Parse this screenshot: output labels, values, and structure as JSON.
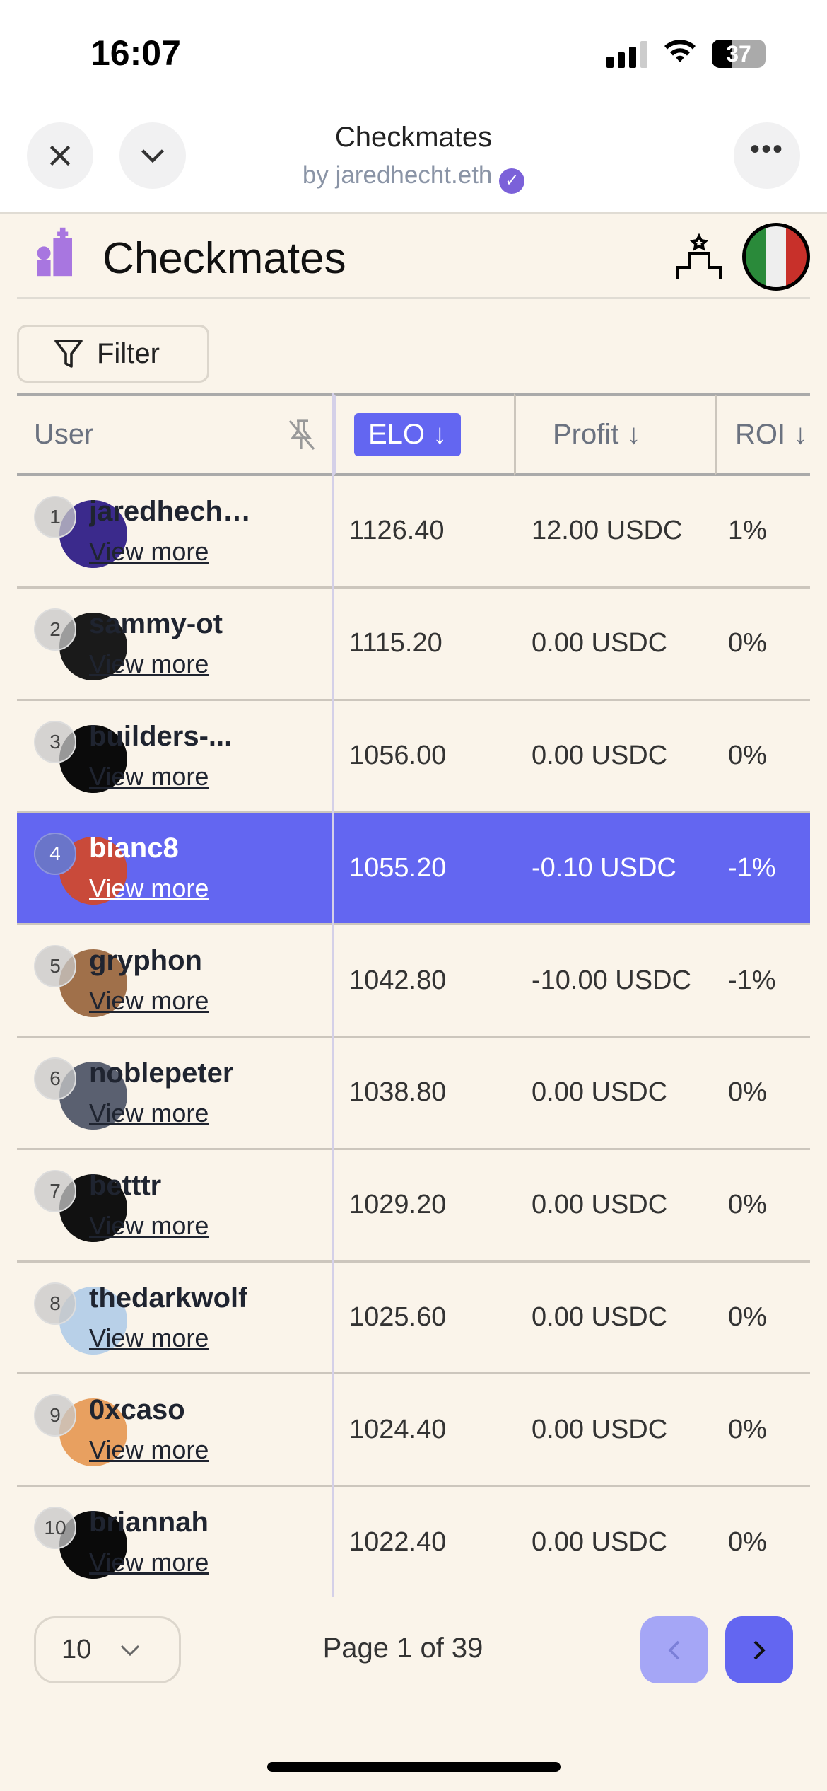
{
  "status_bar": {
    "time": "16:07",
    "battery": "37"
  },
  "browser": {
    "title": "Checkmates",
    "subtitle": "by jaredhecht.eth"
  },
  "app": {
    "title": "Checkmates",
    "filter_label": "Filter"
  },
  "table": {
    "columns": [
      "User",
      "ELO ↓",
      "Profit ↓",
      "ROI ↓"
    ],
    "view_more": "View more",
    "rows": [
      {
        "rank": "1",
        "user": "jaredhecht.eth",
        "elo": "1126.40",
        "profit": "12.00 USDC",
        "roi": "1%",
        "avatar_color": "#3b2a8c"
      },
      {
        "rank": "2",
        "user": "sammy-ot",
        "elo": "1115.20",
        "profit": "0.00 USDC",
        "roi": "0%",
        "avatar_color": "#1a1a1a"
      },
      {
        "rank": "3",
        "user": "builders-...",
        "elo": "1056.00",
        "profit": "0.00 USDC",
        "roi": "0%",
        "avatar_color": "#0b0b0b"
      },
      {
        "rank": "4",
        "user": "bianc8",
        "elo": "1055.20",
        "profit": "-0.10 USDC",
        "roi": "-1%",
        "avatar_color": "#c94a3a",
        "selected": true
      },
      {
        "rank": "5",
        "user": "gryphon",
        "elo": "1042.80",
        "profit": "-10.00 USDC",
        "roi": "-1%",
        "avatar_color": "#a0704a"
      },
      {
        "rank": "6",
        "user": "noblepeter",
        "elo": "1038.80",
        "profit": "0.00 USDC",
        "roi": "0%",
        "avatar_color": "#5a6070"
      },
      {
        "rank": "7",
        "user": "betttr",
        "elo": "1029.20",
        "profit": "0.00 USDC",
        "roi": "0%",
        "avatar_color": "#111111"
      },
      {
        "rank": "8",
        "user": "thedarkwolf",
        "elo": "1025.60",
        "profit": "0.00 USDC",
        "roi": "0%",
        "avatar_color": "#b8d0e8"
      },
      {
        "rank": "9",
        "user": "0xcaso",
        "elo": "1024.40",
        "profit": "0.00 USDC",
        "roi": "0%",
        "avatar_color": "#e8a060"
      },
      {
        "rank": "10",
        "user": "briannah",
        "elo": "1022.40",
        "profit": "0.00 USDC",
        "roi": "0%",
        "avatar_color": "#0a0a0a"
      }
    ]
  },
  "pagination": {
    "page_size": "10",
    "page_info": "Page 1 of 39"
  },
  "colors": {
    "accent": "#6366f1",
    "background": "#faf4ea",
    "verified": "#7b61d9"
  }
}
